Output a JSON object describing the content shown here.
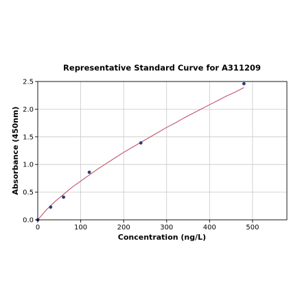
{
  "chart_data": {
    "type": "scatter",
    "title": "Representative Standard Curve for A311209",
    "xlabel": "Concentration (ng/L)",
    "ylabel": "Absorbance (450nm)",
    "xlim": [
      0,
      580
    ],
    "ylim": [
      0,
      2.5
    ],
    "xticks": [
      0,
      100,
      200,
      300,
      400,
      500
    ],
    "yticks": [
      0.0,
      0.5,
      1.0,
      1.5,
      2.0,
      2.5
    ],
    "xtick_labels": [
      "0",
      "100",
      "200",
      "300",
      "400",
      "500"
    ],
    "ytick_labels": [
      "0.0",
      "0.5",
      "1.0",
      "1.5",
      "2.0",
      "2.5"
    ],
    "grid": true,
    "points": [
      {
        "x": 0,
        "y": 0.0
      },
      {
        "x": 30,
        "y": 0.23
      },
      {
        "x": 60,
        "y": 0.41
      },
      {
        "x": 120,
        "y": 0.86
      },
      {
        "x": 240,
        "y": 1.39
      },
      {
        "x": 480,
        "y": 2.46
      }
    ],
    "fit_curve": {
      "x": [
        0,
        20,
        40,
        60,
        80,
        100,
        120,
        140,
        160,
        180,
        200,
        220,
        240,
        260,
        280,
        300,
        320,
        340,
        360,
        380,
        400,
        420,
        440,
        460,
        480
      ],
      "y": [
        0.0,
        0.18,
        0.33,
        0.46,
        0.59,
        0.7,
        0.81,
        0.92,
        1.02,
        1.12,
        1.22,
        1.31,
        1.4,
        1.49,
        1.58,
        1.67,
        1.75,
        1.84,
        1.92,
        2.0,
        2.08,
        2.16,
        2.24,
        2.31,
        2.39
      ]
    },
    "colors": {
      "point": "#2b3a7a",
      "curve": "#c0506a"
    }
  }
}
